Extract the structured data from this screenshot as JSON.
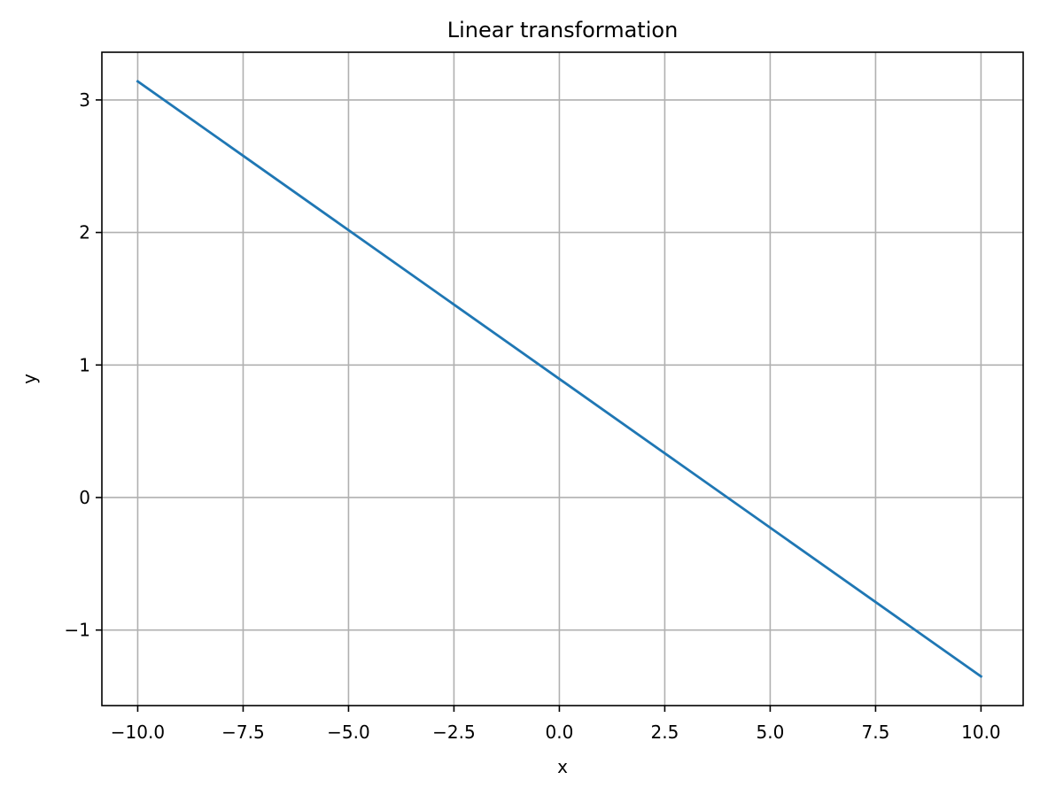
{
  "chart_data": {
    "type": "line",
    "title": "Linear transformation",
    "xlabel": "x",
    "ylabel": "y",
    "xlim": [
      -10.85,
      11.0
    ],
    "ylim": [
      -1.57,
      3.36
    ],
    "xticks": [
      -10.0,
      -7.5,
      -5.0,
      -2.5,
      0.0,
      2.5,
      5.0,
      7.5,
      10.0
    ],
    "xtick_labels": [
      "−10.0",
      "−7.5",
      "−5.0",
      "−2.5",
      "0.0",
      "2.5",
      "5.0",
      "7.5",
      "10.0"
    ],
    "yticks": [
      -1,
      0,
      1,
      2,
      3
    ],
    "ytick_labels": [
      "−1",
      "0",
      "1",
      "2",
      "3"
    ],
    "grid": true,
    "series": [
      {
        "color": "#1f77b4",
        "x": [
          -10.0,
          10.0
        ],
        "y": [
          3.14,
          -1.35
        ]
      }
    ]
  },
  "colors": {
    "grid": "#b0b0b0",
    "axes": "#000000"
  }
}
